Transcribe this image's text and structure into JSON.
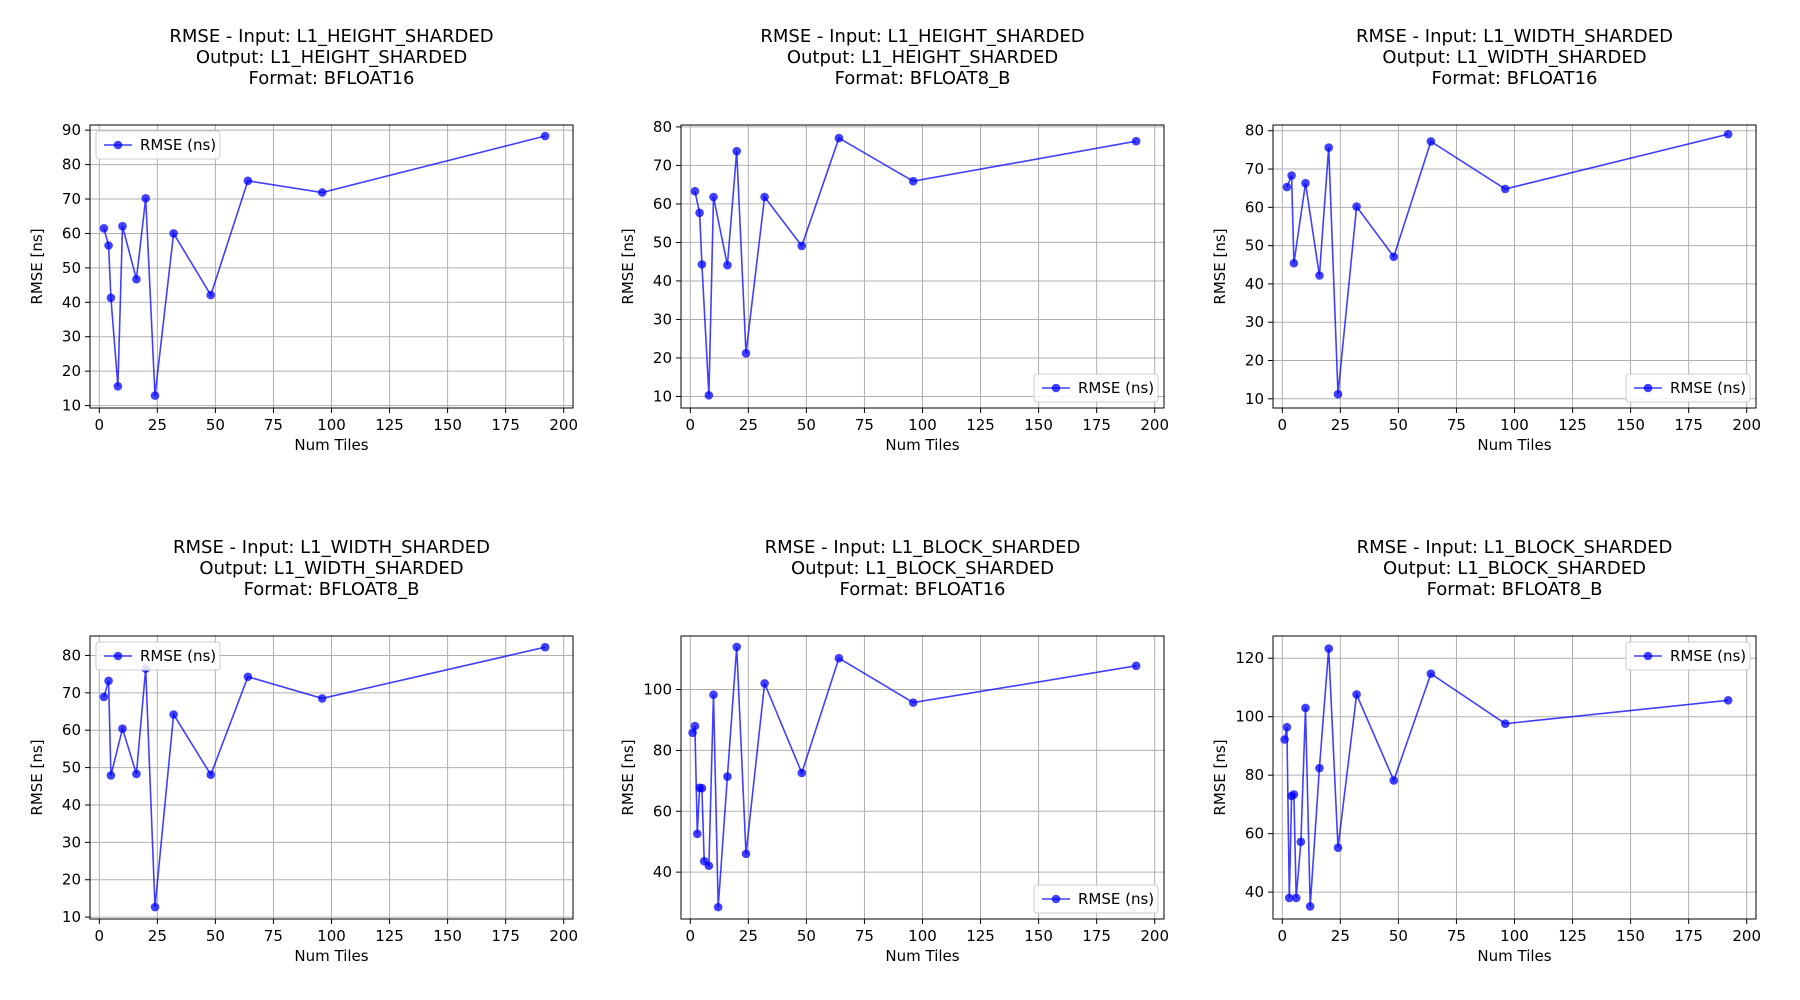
{
  "chart_data": [
    {
      "type": "line",
      "title": [
        "RMSE - Input: L1_HEIGHT_SHARDED",
        "Output: L1_HEIGHT_SHARDED",
        "Format: BFLOAT16"
      ],
      "xlabel": "Num Tiles",
      "ylabel": "RMSE [ns]",
      "xlim": [
        -4,
        204
      ],
      "ylim": [
        9.3,
        91.5
      ],
      "xticks": [
        0,
        25,
        50,
        75,
        100,
        125,
        150,
        175,
        200
      ],
      "yticks": [
        10,
        20,
        30,
        40,
        50,
        60,
        70,
        80,
        90
      ],
      "grid": true,
      "legend_position": "upper-left",
      "series": [
        {
          "name": "RMSE (ns)",
          "color": "#0000ff",
          "x": [
            2,
            4,
            5,
            8,
            10,
            16,
            20,
            24,
            32,
            48,
            64,
            96,
            192
          ],
          "y": [
            61.5,
            56.5,
            41.3,
            15.6,
            62.1,
            46.7,
            70.2,
            12.9,
            60.0,
            42.1,
            75.3,
            71.9,
            88.3
          ]
        }
      ]
    },
    {
      "type": "line",
      "title": [
        "RMSE - Input: L1_HEIGHT_SHARDED",
        "Output: L1_HEIGHT_SHARDED",
        "Format: BFLOAT8_B"
      ],
      "xlabel": "Num Tiles",
      "ylabel": "RMSE [ns]",
      "xlim": [
        -4,
        204
      ],
      "ylim": [
        7.0,
        80.5
      ],
      "xticks": [
        0,
        25,
        50,
        75,
        100,
        125,
        150,
        175,
        200
      ],
      "yticks": [
        10,
        20,
        30,
        40,
        50,
        60,
        70,
        80
      ],
      "grid": true,
      "legend_position": "lower-right",
      "series": [
        {
          "name": "RMSE (ns)",
          "color": "#0000ff",
          "x": [
            2,
            4,
            5,
            8,
            10,
            16,
            20,
            24,
            32,
            48,
            64,
            96,
            192
          ],
          "y": [
            63.3,
            57.7,
            44.3,
            10.3,
            61.8,
            44.1,
            73.7,
            21.2,
            61.8,
            49.1,
            77.1,
            65.9,
            76.3
          ]
        }
      ]
    },
    {
      "type": "line",
      "title": [
        "RMSE - Input: L1_WIDTH_SHARDED",
        "Output: L1_WIDTH_SHARDED",
        "Format: BFLOAT16"
      ],
      "xlabel": "Num Tiles",
      "ylabel": "RMSE [ns]",
      "xlim": [
        -4,
        204
      ],
      "ylim": [
        7.6,
        81.5
      ],
      "xticks": [
        0,
        25,
        50,
        75,
        100,
        125,
        150,
        175,
        200
      ],
      "yticks": [
        10,
        20,
        30,
        40,
        50,
        60,
        70,
        80
      ],
      "grid": true,
      "legend_position": "lower-right",
      "series": [
        {
          "name": "RMSE (ns)",
          "color": "#0000ff",
          "x": [
            2,
            4,
            5,
            10,
            16,
            20,
            24,
            32,
            48,
            64,
            96,
            192
          ],
          "y": [
            65.3,
            68.3,
            45.4,
            66.3,
            42.2,
            75.6,
            11.2,
            60.2,
            47.1,
            77.2,
            64.8,
            79.1
          ]
        }
      ]
    },
    {
      "type": "line",
      "title": [
        "RMSE - Input: L1_WIDTH_SHARDED",
        "Output: L1_WIDTH_SHARDED",
        "Format: BFLOAT8_B"
      ],
      "xlabel": "Num Tiles",
      "ylabel": "RMSE [ns]",
      "xlim": [
        -4,
        204
      ],
      "ylim": [
        9.5,
        85.2
      ],
      "xticks": [
        0,
        25,
        50,
        75,
        100,
        125,
        150,
        175,
        200
      ],
      "yticks": [
        10,
        20,
        30,
        40,
        50,
        60,
        70,
        80
      ],
      "grid": true,
      "legend_position": "upper-left",
      "series": [
        {
          "name": "RMSE (ns)",
          "color": "#0000ff",
          "x": [
            2,
            4,
            5,
            10,
            16,
            20,
            24,
            32,
            48,
            64,
            96,
            192
          ],
          "y": [
            68.9,
            73.2,
            47.9,
            60.4,
            48.3,
            76.5,
            12.7,
            64.2,
            48.1,
            74.3,
            68.5,
            82.2
          ]
        }
      ]
    },
    {
      "type": "line",
      "title": [
        "RMSE - Input: L1_BLOCK_SHARDED",
        "Output: L1_BLOCK_SHARDED",
        "Format: BFLOAT16"
      ],
      "xlabel": "Num Tiles",
      "ylabel": "RMSE [ns]",
      "xlim": [
        -4,
        204
      ],
      "ylim": [
        24.6,
        117.6
      ],
      "xticks": [
        0,
        25,
        50,
        75,
        100,
        125,
        150,
        175,
        200
      ],
      "yticks": [
        40,
        60,
        80,
        100
      ],
      "grid": true,
      "legend_position": "lower-right",
      "series": [
        {
          "name": "RMSE (ns)",
          "color": "#0000ff",
          "x": [
            1,
            2,
            3,
            4,
            5,
            6,
            8,
            10,
            12,
            16,
            20,
            24,
            32,
            48,
            64,
            96,
            192
          ],
          "y": [
            85.8,
            88.0,
            52.6,
            67.7,
            67.6,
            43.6,
            42.1,
            98.3,
            28.5,
            71.4,
            114.0,
            46.0,
            102.0,
            72.6,
            110.3,
            95.7,
            107.8
          ]
        }
      ]
    },
    {
      "type": "line",
      "title": [
        "RMSE - Input: L1_BLOCK_SHARDED",
        "Output: L1_BLOCK_SHARDED",
        "Format: BFLOAT8_B"
      ],
      "xlabel": "Num Tiles",
      "ylabel": "RMSE [ns]",
      "xlim": [
        -4,
        204
      ],
      "ylim": [
        30.8,
        127.6
      ],
      "xticks": [
        0,
        25,
        50,
        75,
        100,
        125,
        150,
        175,
        200
      ],
      "yticks": [
        40,
        60,
        80,
        100,
        120
      ],
      "grid": true,
      "legend_position": "upper-right",
      "series": [
        {
          "name": "RMSE (ns)",
          "color": "#0000ff",
          "x": [
            1,
            2,
            3,
            4,
            5,
            6,
            8,
            10,
            12,
            16,
            20,
            24,
            32,
            48,
            64,
            96,
            192
          ],
          "y": [
            92.2,
            96.4,
            38.0,
            72.9,
            73.4,
            38.0,
            57.2,
            103.0,
            35.1,
            82.4,
            123.3,
            55.2,
            107.6,
            78.2,
            114.7,
            97.6,
            105.6
          ]
        }
      ]
    }
  ]
}
